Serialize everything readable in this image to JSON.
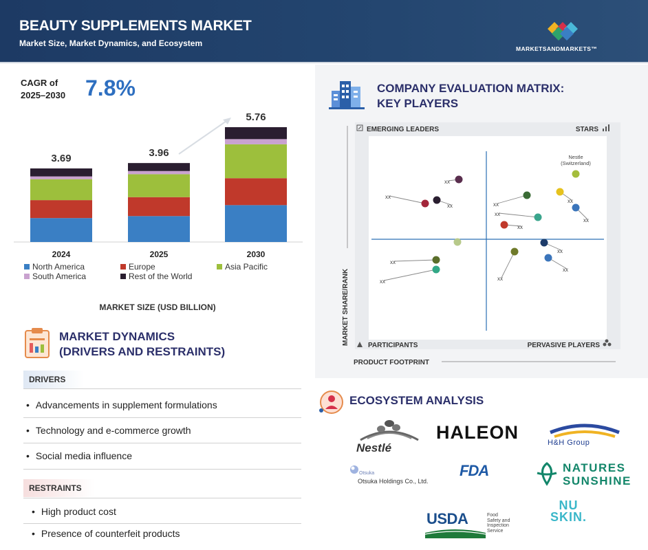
{
  "header": {
    "title": "BEAUTY SUPPLEMENTS MARKET",
    "subtitle": "Market Size, Market Dynamics, and Ecosystem",
    "brand": "MARKETSANDMARKETS™"
  },
  "cagr": {
    "label_line1": "CAGR of",
    "label_line2": "2025–2030",
    "value": "7.8%"
  },
  "chart_data": {
    "type": "bar",
    "stacked": true,
    "categories": [
      "2024",
      "2025",
      "2030"
    ],
    "totals": [
      3.69,
      3.96,
      5.76
    ],
    "total_labels": [
      "3.69",
      "3.96",
      "5.76"
    ],
    "xlabel": "MARKET SIZE (USD BILLION)",
    "series": [
      {
        "name": "North America",
        "color": "#3a7fc4",
        "values": [
          1.2,
          1.3,
          1.85
        ]
      },
      {
        "name": "Europe",
        "color": "#c0392b",
        "values": [
          0.9,
          0.95,
          1.35
        ]
      },
      {
        "name": "Asia Pacific",
        "color": "#9dbf3c",
        "values": [
          1.05,
          1.15,
          1.7
        ]
      },
      {
        "name": "South America",
        "color": "#c9a2cf",
        "values": [
          0.14,
          0.16,
          0.26
        ]
      },
      {
        "name": "Rest of the World",
        "color": "#2a1e30",
        "values": [
          0.4,
          0.4,
          0.6
        ]
      }
    ]
  },
  "dynamics": {
    "title_line1": "MARKET DYNAMICS",
    "title_line2": "(DRIVERS AND RESTRAINTS)",
    "drivers_label": "DRIVERS",
    "drivers": [
      "Advancements in supplement formulations",
      "Technology and e-commerce growth",
      "Social media influence"
    ],
    "restraints_label": "RESTRAINTS",
    "restraints": [
      "High product cost",
      "Presence of counterfeit products"
    ]
  },
  "matrix": {
    "title_line1": "COMPANY EVALUATION MATRIX:",
    "title_line2": "KEY PLAYERS",
    "quadrants": {
      "top_left": "EMERGING LEADERS",
      "top_right": "STARS",
      "bottom_left": "PARTICIPANTS",
      "bottom_right": "PERVASIVE PLAYERS"
    },
    "y_axis_label": "MARKET SHARE/RANK",
    "x_axis_label": "PRODUCT FOOTPRINT",
    "highlight_label_line1": "Nestle",
    "highlight_label_line2": "(Switzerland)",
    "placeholder_label": "xx",
    "points": [
      {
        "color": "#a4bd3c",
        "has_label": false,
        "highlight": true
      },
      {
        "color": "#e6c21e",
        "has_label": true
      },
      {
        "color": "#3b75bb",
        "has_label": true
      },
      {
        "color": "#3a6b35",
        "has_label": true
      },
      {
        "color": "#3aa58c",
        "has_label": true
      },
      {
        "color": "#c0392b",
        "has_label": true
      },
      {
        "color": "#5a2e4e",
        "has_label": true
      },
      {
        "color": "#2a1e30",
        "has_label": true
      },
      {
        "color": "#a3263a",
        "has_label": true
      },
      {
        "color": "#b7c98a",
        "has_label": false
      },
      {
        "color": "#6f7a2a",
        "has_label": true
      },
      {
        "color": "#32a886",
        "has_label": true
      },
      {
        "color": "#5a6e2a",
        "has_label": true
      },
      {
        "color": "#1d3c6a",
        "has_label": true
      },
      {
        "color": "#3b75bb",
        "has_label": true
      }
    ]
  },
  "ecosystem": {
    "title": "ECOSYSTEM ANALYSIS",
    "logos": {
      "nestle": "Nestlé",
      "haleon": "HALEON",
      "hh": "H&H Group",
      "otsuka_small": "Otsuka",
      "otsuka": "Otsuka Holdings Co., Ltd.",
      "fda": "FDA",
      "natures_line1": "NATURES",
      "natures_line2": "SUNSHINE",
      "usda": "USDA",
      "usda_sub_line1": "Food",
      "usda_sub_line2": "Safety and",
      "usda_sub_line3": "Inspection",
      "usda_sub_line4": "Service",
      "nuskin_line1": "NU",
      "nuskin_line2": "SKIN."
    }
  }
}
